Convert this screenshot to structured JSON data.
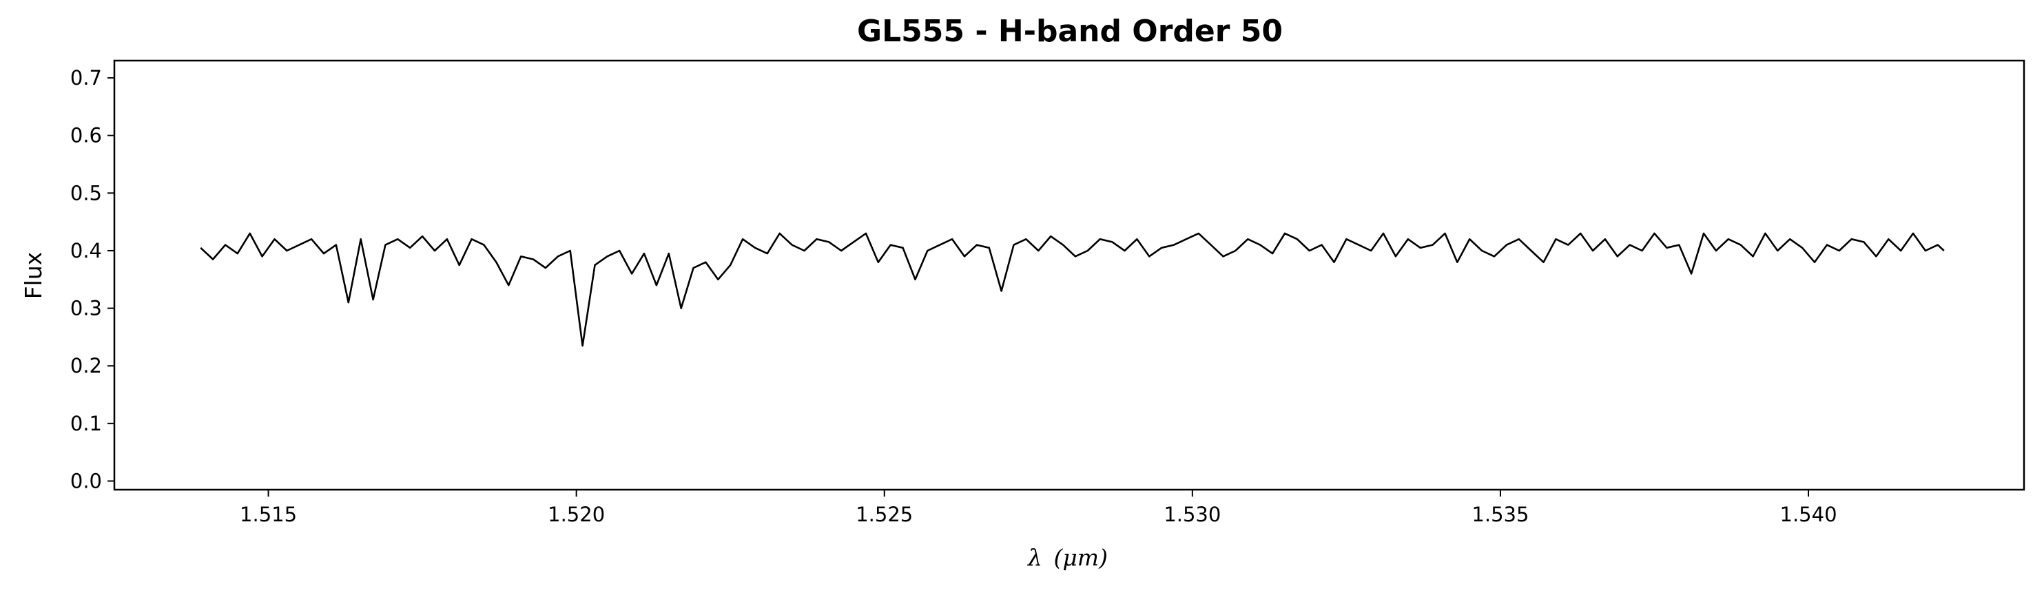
{
  "chart_data": {
    "type": "line",
    "title": "GL555 - H-band Order 50",
    "xlabel_symbol": "λ",
    "xlabel_unit": "(μm)",
    "ylabel": "Flux",
    "xlim": [
      1.5125,
      1.5435
    ],
    "ylim": [
      -0.015,
      0.73
    ],
    "xticks": [
      1.515,
      1.52,
      1.525,
      1.53,
      1.535,
      1.54
    ],
    "xtick_labels": [
      "1.515",
      "1.520",
      "1.525",
      "1.530",
      "1.535",
      "1.540"
    ],
    "yticks": [
      0.0,
      0.1,
      0.2,
      0.3,
      0.4,
      0.5,
      0.6,
      0.7
    ],
    "ytick_labels": [
      "0.0",
      "0.1",
      "0.2",
      "0.3",
      "0.4",
      "0.5",
      "0.6",
      "0.7"
    ],
    "grid": false,
    "line_color": "#000000",
    "series": [
      {
        "x": [
          1.5139,
          1.5141,
          1.5143,
          1.5145,
          1.5147,
          1.5149,
          1.5151,
          1.5153,
          1.5155,
          1.5157,
          1.5159,
          1.5161,
          1.5163,
          1.5165,
          1.5167,
          1.5169,
          1.5171,
          1.5173,
          1.5175,
          1.5177,
          1.5179,
          1.5181,
          1.5183,
          1.5185,
          1.5187,
          1.5189,
          1.5191,
          1.5193,
          1.5195,
          1.5197,
          1.5199,
          1.5201,
          1.5203,
          1.5205,
          1.5207,
          1.5209,
          1.5211,
          1.5213,
          1.5215,
          1.5217,
          1.5219,
          1.5221,
          1.5223,
          1.5225,
          1.5227,
          1.5229,
          1.5231,
          1.5233,
          1.5235,
          1.5237,
          1.5239,
          1.5241,
          1.5243,
          1.5245,
          1.5247,
          1.5249,
          1.5251,
          1.5253,
          1.5255,
          1.5257,
          1.5259,
          1.5261,
          1.5263,
          1.5265,
          1.5267,
          1.5269,
          1.5271,
          1.5273,
          1.5275,
          1.5277,
          1.5279,
          1.5281,
          1.5283,
          1.5285,
          1.5287,
          1.5289,
          1.5291,
          1.5293,
          1.5295,
          1.5297,
          1.5299,
          1.5301,
          1.5303,
          1.5305,
          1.5307,
          1.5309,
          1.5311,
          1.5313,
          1.5315,
          1.5317,
          1.5319,
          1.5321,
          1.5323,
          1.5325,
          1.5327,
          1.5329,
          1.5331,
          1.5333,
          1.5335,
          1.5337,
          1.5339,
          1.5341,
          1.5343,
          1.5345,
          1.5347,
          1.5349,
          1.5351,
          1.5353,
          1.5355,
          1.5357,
          1.5359,
          1.5361,
          1.5363,
          1.5365,
          1.5367,
          1.5369,
          1.5371,
          1.5373,
          1.5375,
          1.5377,
          1.5379,
          1.5381,
          1.5383,
          1.5385,
          1.5387,
          1.5389,
          1.5391,
          1.5393,
          1.5395,
          1.5397,
          1.5399,
          1.5401,
          1.5403,
          1.5405,
          1.5407,
          1.5409,
          1.5411,
          1.5413,
          1.5415,
          1.5417,
          1.5419,
          1.5421,
          1.5422
        ],
        "y": [
          0.405,
          0.385,
          0.41,
          0.395,
          0.43,
          0.39,
          0.42,
          0.4,
          0.41,
          0.42,
          0.395,
          0.41,
          0.31,
          0.42,
          0.315,
          0.41,
          0.42,
          0.405,
          0.425,
          0.4,
          0.42,
          0.375,
          0.42,
          0.41,
          0.38,
          0.34,
          0.39,
          0.385,
          0.37,
          0.39,
          0.4,
          0.235,
          0.375,
          0.39,
          0.4,
          0.36,
          0.395,
          0.34,
          0.395,
          0.3,
          0.37,
          0.38,
          0.35,
          0.375,
          0.42,
          0.405,
          0.395,
          0.43,
          0.41,
          0.4,
          0.42,
          0.415,
          0.4,
          0.415,
          0.43,
          0.38,
          0.41,
          0.405,
          0.35,
          0.4,
          0.41,
          0.42,
          0.39,
          0.41,
          0.405,
          0.33,
          0.41,
          0.42,
          0.4,
          0.425,
          0.41,
          0.39,
          0.4,
          0.42,
          0.415,
          0.4,
          0.42,
          0.39,
          0.405,
          0.41,
          0.42,
          0.43,
          0.41,
          0.39,
          0.4,
          0.42,
          0.41,
          0.395,
          0.43,
          0.42,
          0.4,
          0.41,
          0.38,
          0.42,
          0.41,
          0.4,
          0.43,
          0.39,
          0.42,
          0.405,
          0.41,
          0.43,
          0.38,
          0.42,
          0.4,
          0.39,
          0.41,
          0.42,
          0.4,
          0.38,
          0.42,
          0.41,
          0.43,
          0.4,
          0.42,
          0.39,
          0.41,
          0.4,
          0.43,
          0.405,
          0.41,
          0.36,
          0.43,
          0.4,
          0.42,
          0.41,
          0.39,
          0.43,
          0.4,
          0.42,
          0.405,
          0.38,
          0.41,
          0.4,
          0.42,
          0.415,
          0.39,
          0.42,
          0.4,
          0.43,
          0.4,
          0.41,
          0.4
        ]
      }
    ]
  }
}
